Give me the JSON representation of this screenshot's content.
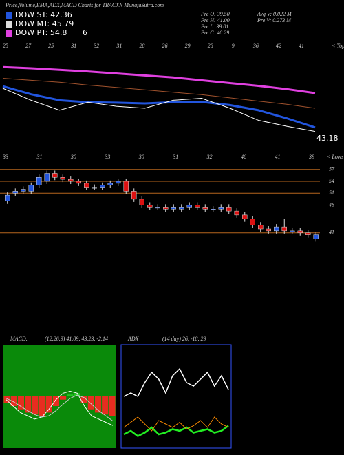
{
  "header": {
    "title": "Price,Volume,EMA,ADX,MACD Charts for TRACXN MunafaSutra.com",
    "legend": [
      {
        "label": "DOW ST: 42.36",
        "color": "#2255dd"
      },
      {
        "label": "DOW MT: 45.79",
        "color": "#dddddd"
      },
      {
        "label": "DOW PT: 54.8",
        "color": "#e040e0"
      }
    ],
    "legend_note": "6",
    "info": [
      "Pre O: 39.50",
      "Pre H: 41.00",
      "Pre L: 39.01",
      "Pre C: 40.29",
      "Avg V: 0.022 M",
      "Pre V: 0.273 M"
    ]
  },
  "chart_data": [
    {
      "type": "line",
      "ylim": [
        40,
        65
      ],
      "top_labels": [
        "25",
        "27",
        "25",
        "31",
        "32",
        "31",
        "28",
        "26",
        "29",
        "28",
        "9",
        "36",
        "42",
        "41"
      ],
      "top_note": "< Tops",
      "low_labels": [
        "33",
        "31",
        "30",
        "33",
        "30",
        "31",
        "32",
        "46",
        "41",
        "39"
      ],
      "low_note": "< Lows",
      "last_price": "43.18",
      "series": [
        {
          "color": "#e040e0",
          "width": 3,
          "values": [
            60.3,
            60.0,
            59.6,
            59.2,
            58.7,
            58.2,
            57.7,
            57.0,
            56.3,
            55.6,
            54.8,
            53.8
          ]
        },
        {
          "color": "#a0522d",
          "width": 1,
          "values": [
            57.5,
            57.0,
            56.5,
            55.8,
            55.2,
            54.6,
            54.0,
            53.4,
            52.6,
            51.8,
            51.0,
            50.0
          ]
        },
        {
          "color": "#2255dd",
          "width": 3,
          "values": [
            55.5,
            53.5,
            52.0,
            51.5,
            51.4,
            51.2,
            51.5,
            51.6,
            50.8,
            49.5,
            47.5,
            45.2
          ]
        },
        {
          "color": "#ffffff",
          "width": 1,
          "values": [
            55.0,
            52.0,
            49.5,
            51.5,
            50.5,
            50.0,
            52.0,
            52.5,
            50.0,
            47.0,
            45.5,
            44.2
          ]
        }
      ]
    },
    {
      "type": "candlestick",
      "ylim": [
        38,
        58
      ],
      "up_color": "#2255dd",
      "down_color": "#dd1111",
      "level_color": "#b5651d",
      "yticks": [
        57,
        54,
        51,
        48,
        41
      ],
      "open": [
        49,
        51,
        51.5,
        51.5,
        53,
        54,
        56,
        55,
        54.5,
        54,
        53.5,
        52.5,
        52.5,
        53,
        53.5,
        54,
        51.5,
        49.5,
        48,
        47.5,
        47.5,
        47,
        47,
        47.5,
        48,
        47.5,
        47,
        47,
        47.5,
        46.5,
        45.5,
        44.5,
        43,
        42,
        41.5,
        42.5,
        41.5,
        41.5,
        41,
        39.5
      ],
      "high": [
        51.2,
        52.2,
        52.7,
        53.7,
        55.7,
        56.7,
        56.7,
        55.7,
        55.2,
        54.7,
        54.2,
        53.2,
        53.7,
        54.2,
        54.7,
        54.7,
        52.2,
        50.2,
        48.7,
        48.2,
        48.2,
        48.2,
        48.2,
        48.7,
        48.7,
        48.2,
        47.7,
        48.2,
        48.2,
        47.2,
        46.2,
        45.2,
        43.7,
        42.7,
        43.2,
        44.5,
        42.2,
        42.2,
        41.7,
        41.2
      ],
      "low": [
        48.3,
        50.3,
        50.8,
        50.8,
        52.3,
        53.3,
        54.3,
        53.8,
        53.3,
        52.8,
        51.8,
        51.8,
        51.8,
        52.3,
        52.8,
        50.8,
        48.8,
        47.3,
        46.8,
        46.8,
        46.3,
        46.3,
        46.3,
        46.8,
        46.8,
        46.3,
        46.3,
        46.3,
        45.8,
        44.8,
        43.8,
        42.3,
        41.3,
        40.8,
        40.8,
        40.8,
        40.8,
        40.3,
        39.8,
        38.8
      ],
      "close": [
        50.5,
        51.5,
        52,
        53,
        55,
        56,
        55,
        54.5,
        54,
        53.5,
        52.5,
        52.5,
        53,
        53.5,
        54,
        51.5,
        49.5,
        48,
        47.5,
        47.5,
        47,
        47.5,
        47.5,
        48,
        47.5,
        47,
        47,
        47.5,
        46.5,
        45.5,
        44.5,
        43,
        42,
        41.5,
        42.5,
        41.5,
        41.5,
        41,
        40.5,
        40.5
      ]
    },
    {
      "type": "line",
      "title": "MACD:",
      "subtitle": "(12,26,9) 41.09, 43.23, -2.14",
      "ylim": [
        -8,
        8
      ],
      "background": "#0a8a0a",
      "pos_color": "#22cc22",
      "neg_color": "#ff2222",
      "histogram": [
        -1,
        -1.5,
        -2,
        -2.5,
        -2.8,
        -3,
        -2.5,
        -1.5,
        -0.5,
        0.3,
        0.5,
        -1,
        -2,
        -2.5,
        -2.8,
        -3
      ],
      "series": [
        {
          "color": "#ffffff",
          "width": 1,
          "values": [
            -0.5,
            -1.5,
            -2.5,
            -3,
            -3.5,
            -3.2,
            -2,
            -0.5,
            0.5,
            0.8,
            0.5,
            -1.5,
            -3,
            -3.5,
            -4,
            -4.5
          ]
        },
        {
          "color": "#cccccc",
          "width": 1,
          "values": [
            -0.3,
            -0.8,
            -1.5,
            -2.2,
            -2.8,
            -3.2,
            -3,
            -2.2,
            -1.2,
            -0.3,
            0.2,
            -0.2,
            -1.2,
            -2.2,
            -3,
            -3.8
          ]
        }
      ]
    },
    {
      "type": "line",
      "title": "ADX",
      "subtitle": "(14 day) 26, -18, 29",
      "ylim": [
        0,
        60
      ],
      "background": "#000000",
      "border": "#3355ff",
      "series": [
        {
          "color": "#ffffff",
          "width": 1.5,
          "values": [
            30,
            32,
            30,
            38,
            44,
            40,
            32,
            42,
            46,
            38,
            36,
            40,
            44,
            36,
            42,
            34
          ]
        },
        {
          "color": "#22ee22",
          "width": 2.5,
          "values": [
            8,
            10,
            7,
            9,
            12,
            8,
            9,
            11,
            10,
            12,
            9,
            10,
            11,
            9,
            10,
            13
          ]
        },
        {
          "color": "#ff8c00",
          "width": 1,
          "values": [
            12,
            15,
            18,
            14,
            10,
            16,
            14,
            12,
            15,
            11,
            13,
            16,
            12,
            18,
            14,
            12
          ]
        }
      ]
    }
  ]
}
